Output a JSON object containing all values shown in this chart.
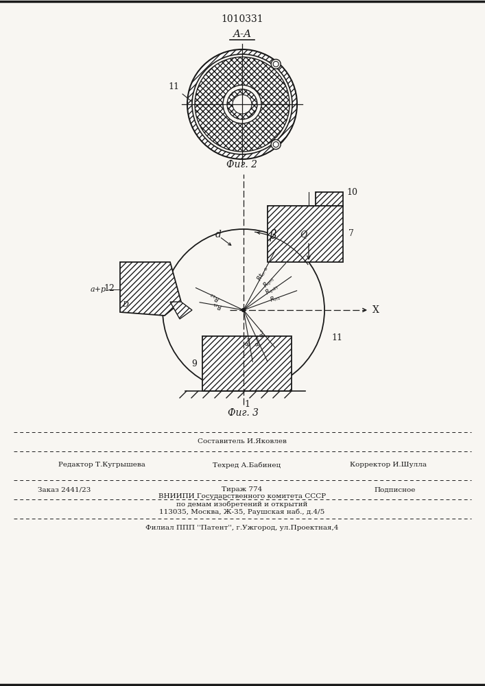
{
  "title": "1010331",
  "aa_label": "A-A",
  "fig2_label": "Фиг. 2",
  "fig3_label": "Фиг. 3",
  "bg_color": "#f8f6f2",
  "lc": "#1a1a1a",
  "footer_sostavitel": "Составитель И.Яковлев",
  "footer_editor": "Редактор Т.Кугрышева",
  "footer_techred": "Техред А.Бабинец",
  "footer_corrector": "Корректор И.Шулла",
  "footer_zakaz": "Заказ 2441/23",
  "footer_tirazh": "Тираж 774",
  "footer_podpisnoe": "Подписное",
  "footer_vnipi1": "ВНИИПИ Государственного комитета СССР",
  "footer_vnipi2": "по демам изобретений и открытий",
  "footer_vnipi3": "113035, Москва, Ж-35, Раушская наб., д.4/5",
  "footer_patent": "Филиал ППП ''Патент'', г.Ужгород, ул.Проектная,4"
}
